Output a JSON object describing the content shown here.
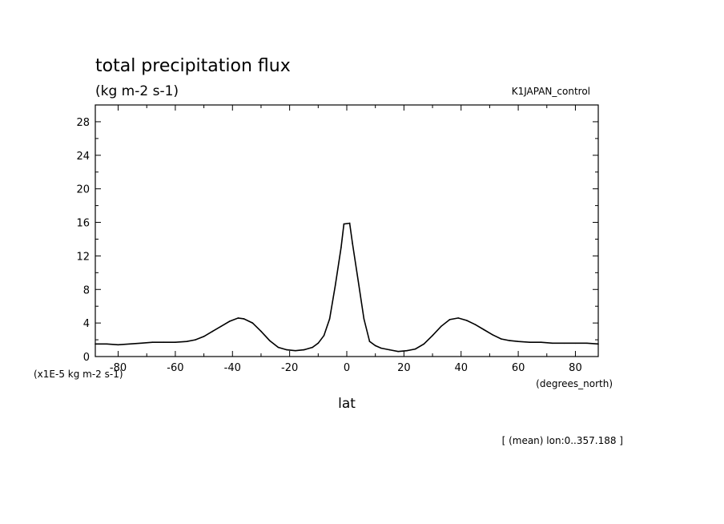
{
  "chart_data": {
    "type": "line",
    "title": "total precipitation flux",
    "subtitle": "(kg m-2 s-1)",
    "experiment": "K1JAPAN_control",
    "xlabel": "lat",
    "xunits": "(degrees_north)",
    "yscale_label": "(x1E-5 kg m-2 s-1)",
    "footnote": "[ (mean) lon:0..357.188 ]",
    "xlim": [
      -88,
      88
    ],
    "ylim": [
      0,
      30
    ],
    "xticks": [
      -80,
      -60,
      -40,
      -20,
      0,
      20,
      40,
      60,
      80
    ],
    "xtick_labels": [
      "-80",
      "-60",
      "-40",
      "-20",
      "0",
      "20",
      "40",
      "60",
      "80"
    ],
    "yticks": [
      0,
      4,
      8,
      12,
      16,
      20,
      24,
      28
    ],
    "ytick_labels": [
      "0",
      "4",
      "8",
      "12",
      "16",
      "20",
      "24",
      "28"
    ],
    "grid": false,
    "series": [
      {
        "x": [
          -88,
          -84,
          -80,
          -76,
          -72,
          -68,
          -64,
          -60,
          -56,
          -53,
          -50,
          -47,
          -44,
          -41,
          -38,
          -36,
          -33,
          -30,
          -27,
          -24,
          -21,
          -18,
          -15,
          -12,
          -10,
          -8,
          -6,
          -4,
          -2,
          -1,
          1,
          2,
          4,
          6,
          8,
          10,
          12,
          15,
          18,
          21,
          24,
          27,
          30,
          33,
          36,
          39,
          42,
          45,
          48,
          51,
          54,
          57,
          60,
          64,
          68,
          72,
          76,
          80,
          84,
          88
        ],
        "y": [
          1.5,
          1.5,
          1.4,
          1.5,
          1.6,
          1.7,
          1.7,
          1.7,
          1.8,
          2.0,
          2.4,
          3.0,
          3.6,
          4.2,
          4.6,
          4.5,
          4.0,
          3.0,
          1.9,
          1.1,
          0.8,
          0.7,
          0.8,
          1.1,
          1.6,
          2.5,
          4.5,
          8.5,
          13.0,
          15.8,
          15.9,
          13.5,
          9.0,
          4.5,
          1.8,
          1.3,
          1.0,
          0.8,
          0.6,
          0.7,
          0.9,
          1.5,
          2.5,
          3.6,
          4.4,
          4.6,
          4.3,
          3.8,
          3.2,
          2.6,
          2.1,
          1.9,
          1.8,
          1.7,
          1.7,
          1.6,
          1.6,
          1.6,
          1.6,
          1.5
        ]
      }
    ]
  }
}
